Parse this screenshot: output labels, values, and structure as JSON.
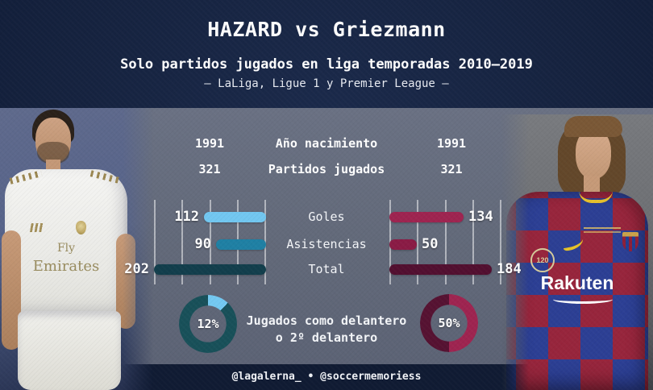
{
  "header": {
    "title": "HAZARD vs Griezmann",
    "subtitle": "Solo partidos jugados en liga temporadas 2010–2019",
    "leagues": "— LaLiga, Ligue 1 y Premier League —"
  },
  "chart_data": {
    "type": "bar",
    "orientation": "horizontal-mirrored",
    "title": "HAZARD vs Griezmann",
    "subtitle": "Solo partidos jugados en liga temporadas 2010–2019",
    "note": "— LaLiga, Ligue 1 y Premier League —",
    "categories": [
      "Goles",
      "Asistencias",
      "Total"
    ],
    "series": [
      {
        "name": "Hazard",
        "side": "left",
        "values": [
          112,
          90,
          202
        ],
        "colors": [
          "#72c7f1",
          "#1f80a4",
          "#123e4c"
        ]
      },
      {
        "name": "Griezmann",
        "side": "right",
        "values": [
          134,
          50,
          184
        ],
        "colors": [
          "#9e2450",
          "#8a1b45",
          "#520f30"
        ]
      }
    ],
    "axis_max": 202,
    "gridlines_per_side": 5,
    "info_rows": [
      {
        "label": "Año nacimiento",
        "hazard": "1991",
        "griezmann": "1991"
      },
      {
        "label": "Partidos jugados",
        "hazard": "321",
        "griezmann": "321"
      }
    ],
    "donuts": [
      {
        "player": "Hazard",
        "percent": 12
      },
      {
        "player": "Griezmann",
        "percent": 50
      }
    ]
  },
  "donut_section": {
    "left": {
      "percent": 12,
      "label": "12%",
      "segment_color": "#74c9f2",
      "ring_color": "#185059"
    },
    "right": {
      "percent": 50,
      "label": "50%",
      "segment_color": "#9e2450",
      "ring_color": "#561232"
    },
    "caption_line1": "Jugados como delantero",
    "caption_line2": "o 2º delantero"
  },
  "footer": {
    "credits": "@lagalerna_ • @soccermemoriess"
  },
  "jerseys": {
    "hazard": {
      "sponsor_line1": "Fly",
      "sponsor_line2": "Emirates"
    },
    "griezmann": {
      "sponsor": "Rakuten",
      "sleeve_badge": "120"
    }
  },
  "colors": {
    "background_navy": "#15223e",
    "panel_gray": "#626979",
    "footer_navy": "#101b33",
    "text": "#ffffff",
    "hazard_goles": "#72c7f1",
    "hazard_asistencias": "#1f80a4",
    "hazard_total": "#123e4c",
    "griezmann_goles": "#9e2450",
    "griezmann_asistencias": "#8a1b45",
    "griezmann_total": "#520f30",
    "gridline": "rgba(255,255,255,0.5)"
  }
}
